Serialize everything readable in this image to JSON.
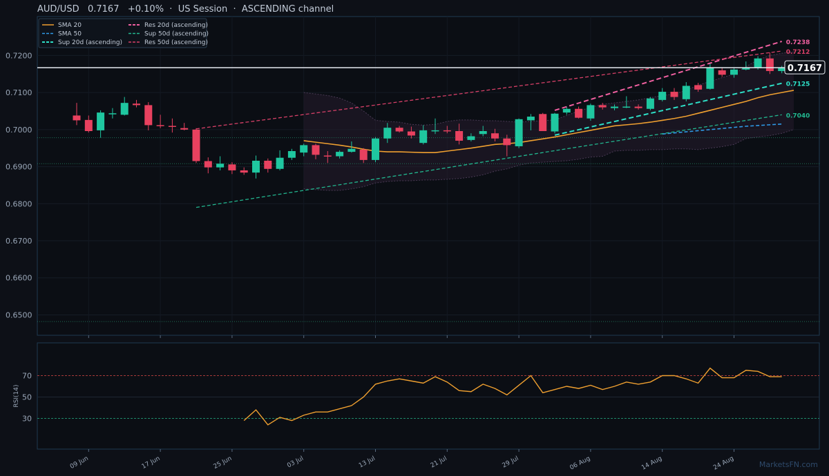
{
  "header": {
    "title": "AUD/USD   0.7167   +0.10%  ·  US Session  ·  ASCENDING channel"
  },
  "watermark": "MarketsFN.com",
  "chart_data": {
    "type": "candlestick",
    "symbol": "AUD/USD",
    "last_price": "0.7167",
    "price_axis": {
      "ylim": [
        0.6445,
        0.7305
      ],
      "ticks": [
        "0.7200",
        "0.7100",
        "0.7000",
        "0.6900",
        "0.6800",
        "0.6700",
        "0.6600",
        "0.6500"
      ],
      "tick_values": [
        0.72,
        0.71,
        0.7,
        0.69,
        0.68,
        0.67,
        0.66,
        0.65
      ]
    },
    "x_axis": {
      "ticks": [
        "09 Jun",
        "17 Jun",
        "25 Jun",
        "03 Jul",
        "13 Jul",
        "21 Jul",
        "29 Jul",
        "06 Aug",
        "14 Aug",
        "24 Aug"
      ],
      "tick_index": [
        1,
        7,
        13,
        19,
        25,
        31,
        37,
        43,
        49,
        55
      ]
    },
    "legend": [
      {
        "name": "SMA 20",
        "color": "#f0a030",
        "dash": "solid"
      },
      {
        "name": "SMA 50",
        "color": "#2f9be8",
        "dash": "dashed"
      },
      {
        "name": "Sup 20d (ascending)",
        "color": "#2ee0c8",
        "dash": "dashed"
      },
      {
        "name": "Res 20d (ascending)",
        "color": "#f060a0",
        "dash": "dashed"
      },
      {
        "name": "Sup 50d (ascending)",
        "color": "#22b890",
        "dash": "dashed"
      },
      {
        "name": "Res 50d (ascending)",
        "color": "#d84068",
        "dash": "dashed"
      }
    ],
    "candles": [
      [
        0.7038,
        0.7072,
        0.7012,
        0.7025
      ],
      [
        0.7026,
        0.7038,
        0.6992,
        0.6996
      ],
      [
        0.6998,
        0.7052,
        0.6978,
        0.7046
      ],
      [
        0.7042,
        0.7058,
        0.703,
        0.7044
      ],
      [
        0.704,
        0.7088,
        0.7038,
        0.7072
      ],
      [
        0.707,
        0.708,
        0.706,
        0.7066
      ],
      [
        0.7066,
        0.7074,
        0.6998,
        0.7012
      ],
      [
        0.7012,
        0.704,
        0.7004,
        0.701
      ],
      [
        0.701,
        0.703,
        0.6992,
        0.7008
      ],
      [
        0.7004,
        0.7018,
        0.6998,
        0.7
      ],
      [
        0.7,
        0.7004,
        0.691,
        0.6915
      ],
      [
        0.6915,
        0.6925,
        0.6882,
        0.6898
      ],
      [
        0.6898,
        0.6928,
        0.689,
        0.6908
      ],
      [
        0.6906,
        0.6912,
        0.688,
        0.689
      ],
      [
        0.689,
        0.6898,
        0.6878,
        0.6884
      ],
      [
        0.6884,
        0.693,
        0.6868,
        0.6916
      ],
      [
        0.6916,
        0.6922,
        0.6884,
        0.6894
      ],
      [
        0.6894,
        0.6944,
        0.689,
        0.6924
      ],
      [
        0.6924,
        0.6948,
        0.6918,
        0.6942
      ],
      [
        0.6938,
        0.6962,
        0.6928,
        0.6958
      ],
      [
        0.6958,
        0.6962,
        0.692,
        0.6932
      ],
      [
        0.693,
        0.6942,
        0.691,
        0.6928
      ],
      [
        0.6928,
        0.6944,
        0.6922,
        0.694
      ],
      [
        0.694,
        0.6968,
        0.6938,
        0.6948
      ],
      [
        0.6946,
        0.695,
        0.691,
        0.6918
      ],
      [
        0.6918,
        0.698,
        0.6912,
        0.6976
      ],
      [
        0.6976,
        0.7018,
        0.6964,
        0.7005
      ],
      [
        0.7005,
        0.701,
        0.6992,
        0.6995
      ],
      [
        0.6995,
        0.7008,
        0.6976,
        0.6984
      ],
      [
        0.6964,
        0.7012,
        0.696,
        0.6998
      ],
      [
        0.6998,
        0.703,
        0.6988,
        0.6998
      ],
      [
        0.6998,
        0.701,
        0.699,
        0.6996
      ],
      [
        0.6996,
        0.7016,
        0.696,
        0.697
      ],
      [
        0.6972,
        0.699,
        0.6968,
        0.6982
      ],
      [
        0.6988,
        0.701,
        0.6982,
        0.6996
      ],
      [
        0.699,
        0.7002,
        0.6968,
        0.6976
      ],
      [
        0.6976,
        0.6986,
        0.6928,
        0.6958
      ],
      [
        0.6955,
        0.703,
        0.695,
        0.7028
      ],
      [
        0.7025,
        0.7042,
        0.6998,
        0.7035
      ],
      [
        0.7042,
        0.7045,
        0.6996,
        0.6996
      ],
      [
        0.6995,
        0.7045,
        0.699,
        0.7043
      ],
      [
        0.7046,
        0.7062,
        0.704,
        0.7056
      ],
      [
        0.7056,
        0.7062,
        0.703,
        0.7032
      ],
      [
        0.703,
        0.707,
        0.7024,
        0.7066
      ],
      [
        0.7066,
        0.7072,
        0.7054,
        0.706
      ],
      [
        0.7058,
        0.7068,
        0.7052,
        0.7062
      ],
      [
        0.7062,
        0.709,
        0.7058,
        0.7062
      ],
      [
        0.7062,
        0.7068,
        0.7054,
        0.7058
      ],
      [
        0.7056,
        0.7088,
        0.7052,
        0.7084
      ],
      [
        0.708,
        0.7112,
        0.7076,
        0.7102
      ],
      [
        0.7102,
        0.7112,
        0.708,
        0.7088
      ],
      [
        0.7082,
        0.7128,
        0.7076,
        0.7118
      ],
      [
        0.712,
        0.7126,
        0.7102,
        0.7108
      ],
      [
        0.711,
        0.7178,
        0.7108,
        0.7168
      ],
      [
        0.716,
        0.7168,
        0.7142,
        0.7148
      ],
      [
        0.7148,
        0.7166,
        0.714,
        0.7162
      ],
      [
        0.7162,
        0.7184,
        0.716,
        0.7168
      ],
      [
        0.7168,
        0.7198,
        0.7162,
        0.7192
      ],
      [
        0.7192,
        0.7208,
        0.715,
        0.7158
      ],
      [
        0.7158,
        0.7172,
        0.7152,
        0.7167
      ]
    ],
    "sma20": {
      "start": 19,
      "values": [
        0.697,
        0.6966,
        0.6962,
        0.6958,
        0.6953,
        0.6947,
        0.6942,
        0.694,
        0.694,
        0.6939,
        0.6938,
        0.6938,
        0.6942,
        0.6946,
        0.695,
        0.6955,
        0.696,
        0.6962,
        0.6965,
        0.697,
        0.6975,
        0.698,
        0.6986,
        0.6992,
        0.6998,
        0.7004,
        0.701,
        0.7013,
        0.7016,
        0.702,
        0.7025,
        0.703,
        0.7036,
        0.7044,
        0.7052,
        0.706,
        0.7068,
        0.7076,
        0.7086,
        0.7094,
        0.71,
        0.7106
      ]
    },
    "sma50": {
      "start": 49,
      "values": [
        0.6988,
        0.6991,
        0.6994,
        0.6997,
        0.7,
        0.7003,
        0.7006,
        0.7009,
        0.7011,
        0.7013,
        0.7015
      ]
    },
    "bb_upper": {
      "start": 19,
      "values": [
        0.71,
        0.7096,
        0.7092,
        0.7085,
        0.7072,
        0.705,
        0.7025,
        0.7022,
        0.702,
        0.7014,
        0.7012,
        0.7014,
        0.7022,
        0.7026,
        0.7026,
        0.7024,
        0.7024,
        0.7022,
        0.702,
        0.7022,
        0.7024,
        0.7026,
        0.7038,
        0.705,
        0.706,
        0.7068,
        0.7072,
        0.7076,
        0.708,
        0.7086,
        0.7092,
        0.7096,
        0.7106,
        0.712,
        0.713,
        0.714,
        0.715,
        0.717,
        0.7188,
        0.72,
        0.7206,
        0.721
      ]
    },
    "bb_lower": {
      "start": 19,
      "values": [
        0.684,
        0.6838,
        0.6836,
        0.6836,
        0.684,
        0.6846,
        0.6856,
        0.686,
        0.6862,
        0.6862,
        0.6864,
        0.6864,
        0.6866,
        0.6868,
        0.6872,
        0.6878,
        0.6888,
        0.6894,
        0.6904,
        0.691,
        0.6912,
        0.6914,
        0.6916,
        0.692,
        0.6926,
        0.6928,
        0.6942,
        0.6944,
        0.6944,
        0.6946,
        0.6946,
        0.6948,
        0.6948,
        0.6946,
        0.695,
        0.6954,
        0.696,
        0.6976,
        0.698,
        0.6984,
        0.699,
        0.7
      ]
    },
    "trendlines": {
      "res20": {
        "x": [
          40,
          59
        ],
        "y": [
          0.7052,
          0.7238
        ],
        "color": "#f060a0",
        "label": "0.7238"
      },
      "sup20": {
        "x": [
          40,
          59
        ],
        "y": [
          0.6985,
          0.7125
        ],
        "color": "#2ee0c8",
        "label": "0.7125"
      },
      "res50": {
        "x": [
          10,
          59
        ],
        "y": [
          0.7002,
          0.7212
        ],
        "color": "#d84068",
        "label": "0.7212"
      },
      "sup50": {
        "x": [
          10,
          59
        ],
        "y": [
          0.679,
          0.704
        ],
        "color": "#22b890",
        "label": "0.7040"
      }
    },
    "hlines": [
      0.6978,
      0.6908,
      0.6482
    ],
    "rsi": {
      "label": "RSI(14)",
      "ticks": [
        "70",
        "50",
        "30"
      ],
      "tick_values": [
        70,
        50,
        30
      ],
      "ylim": [
        0,
        100
      ],
      "overbought": 70,
      "oversold": 30,
      "start": 14,
      "values": [
        28,
        38,
        24,
        31,
        28,
        33,
        36,
        36,
        39,
        42,
        50,
        62,
        65,
        67,
        65,
        63,
        69,
        64,
        56,
        55,
        62,
        58,
        52,
        61,
        70,
        54,
        57,
        60,
        58,
        61,
        57,
        60,
        64,
        62,
        64,
        70,
        70,
        67,
        63,
        77,
        68,
        68,
        75,
        74,
        69,
        69
      ]
    }
  }
}
